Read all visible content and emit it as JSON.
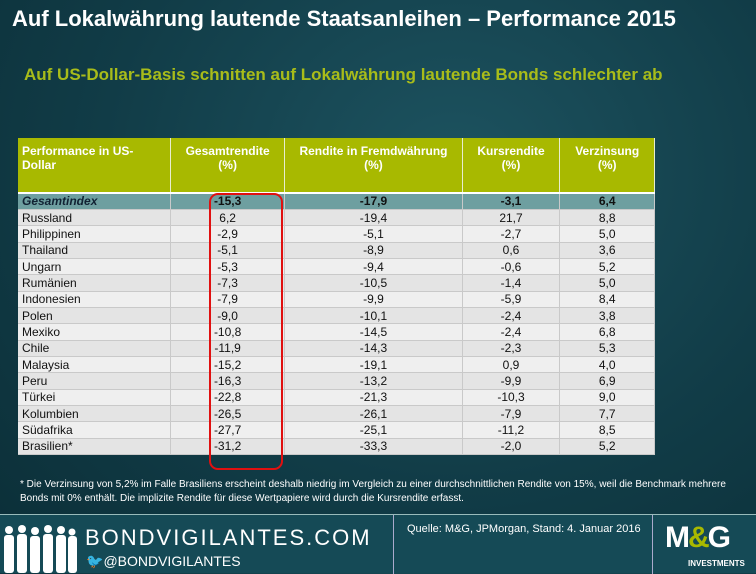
{
  "title": "Auf Lokalwährung lautende Staatsanleihen – Performance 2015",
  "subtitle": "Auf US-Dollar-Basis schnitten auf Lokalwährung lautende Bonds schlechter ab",
  "table": {
    "headers": [
      "Performance in US-Dollar",
      "Gesamtrendite (%)",
      "Rendite in Fremdwährung (%)",
      "Kursrendite (%)",
      "Verzinsung (%)"
    ],
    "rows": [
      [
        "Gesamtindex",
        "-15,3",
        "-17,9",
        "-3,1",
        "6,4"
      ],
      [
        "Russland",
        "6,2",
        "-19,4",
        "21,7",
        "8,8"
      ],
      [
        "Philippinen",
        "-2,9",
        "-5,1",
        "-2,7",
        "5,0"
      ],
      [
        "Thailand",
        "-5,1",
        "-8,9",
        "0,6",
        "3,6"
      ],
      [
        "Ungarn",
        "-5,3",
        "-9,4",
        "-0,6",
        "5,2"
      ],
      [
        "Rumänien",
        "-7,3",
        "-10,5",
        "-1,4",
        "5,0"
      ],
      [
        "Indonesien",
        "-7,9",
        "-9,9",
        "-5,9",
        "8,4"
      ],
      [
        "Polen",
        "-9,0",
        "-10,1",
        "-2,4",
        "3,8"
      ],
      [
        "Mexiko",
        "-10,8",
        "-14,5",
        "-2,4",
        "6,8"
      ],
      [
        "Chile",
        "-11,9",
        "-14,3",
        "-2,3",
        "5,3"
      ],
      [
        "Malaysia",
        "-15,2",
        "-19,1",
        "0,9",
        "4,0"
      ],
      [
        "Peru",
        "-16,3",
        "-13,2",
        "-9,9",
        "6,9"
      ],
      [
        "Türkei",
        "-22,8",
        "-21,3",
        "-10,3",
        "9,0"
      ],
      [
        "Kolumbien",
        "-26,5",
        "-26,1",
        "-7,9",
        "7,7"
      ],
      [
        "Südafrika",
        "-27,7",
        "-25,1",
        "-11,2",
        "8,5"
      ],
      [
        "Brasilien*",
        "-31,2",
        "-33,3",
        "-2,0",
        "5,2"
      ]
    ]
  },
  "footnote": "* Die Verzinsung von 5,2% im Falle Brasiliens erscheint deshalb niedrig im Vergleich zu einer durchschnittlichen Rendite von 15%, weil die Benchmark mehrere Bonds mit 0% enthält. Die implizite Rendite für diese Wertpapiere wird durch die Kursrendite erfasst.",
  "footer": {
    "site": "BONDVIGILANTES.COM",
    "twitter": "@BONDVIGILANTES",
    "source": "Quelle: M&G, JPMorgan, Stand: 4. Januar 2016",
    "logo": "M&G",
    "logo_sub": "INVESTMENTS"
  },
  "colors": {
    "accent": "#a8b900",
    "background": "#113c47",
    "highlight": "#e01010"
  }
}
